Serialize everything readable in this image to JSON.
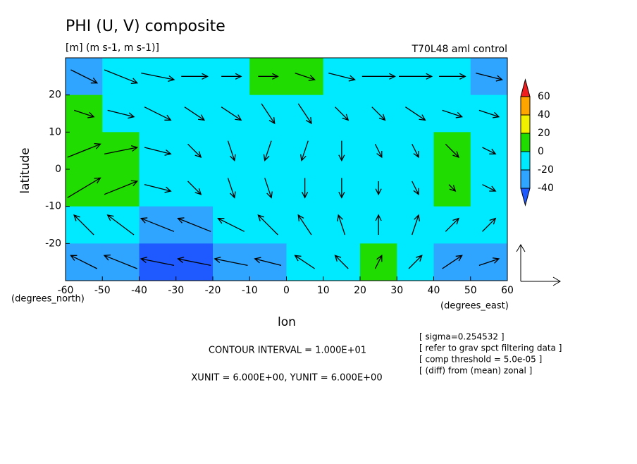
{
  "chart_data": {
    "type": "contour-vector",
    "title": "PHI (U, V) composite",
    "subtitle": "[m] (m s-1, m s-1)]",
    "run_label": "T70L48 aml control",
    "y_label": "latitude",
    "x_label": "lon",
    "y_unit_label": "(degrees_north)",
    "x_unit_label": "(degrees_east)",
    "xlim": [
      -60,
      60
    ],
    "ylim": [
      -30,
      30
    ],
    "xticks": [
      -60,
      -50,
      -40,
      -30,
      -20,
      -10,
      0,
      10,
      20,
      30,
      40,
      50,
      60
    ],
    "yticks": [
      -20,
      -10,
      0,
      10,
      20
    ],
    "lon": [
      -55,
      -45,
      -35,
      -25,
      -15,
      -5,
      5,
      15,
      25,
      35,
      45,
      55
    ],
    "lat": [
      25,
      15,
      5,
      -5,
      -15,
      -25
    ],
    "values": [
      [
        -25,
        -15,
        -15,
        -15,
        -10,
        5,
        5,
        -15,
        -15,
        -15,
        -15,
        -25
      ],
      [
        5,
        -15,
        -15,
        -15,
        -15,
        -15,
        -15,
        -15,
        -15,
        -15,
        -15,
        -15
      ],
      [
        5,
        5,
        -10,
        -15,
        -15,
        -15,
        -15,
        -15,
        -15,
        -15,
        5,
        -10
      ],
      [
        5,
        5,
        -10,
        -15,
        -15,
        -15,
        -15,
        -15,
        -15,
        -15,
        5,
        -10
      ],
      [
        -15,
        -20,
        -25,
        -25,
        -20,
        -15,
        -15,
        -15,
        -15,
        -15,
        -15,
        -15
      ],
      [
        -25,
        -35,
        -45,
        -45,
        -35,
        -25,
        -15,
        -15,
        5,
        -15,
        -25,
        -25
      ]
    ],
    "u": [
      [
        4,
        5,
        5,
        4,
        3,
        3,
        3,
        4,
        5,
        5,
        4,
        4
      ],
      [
        3,
        4,
        4,
        3,
        3,
        2,
        2,
        2,
        2,
        3,
        3,
        3
      ],
      [
        5,
        5,
        4,
        2,
        1,
        -1,
        -1,
        0,
        1,
        1,
        2,
        2
      ],
      [
        5,
        5,
        4,
        2,
        1,
        1,
        0,
        0,
        0,
        1,
        1,
        2
      ],
      [
        -3,
        -4,
        -5,
        -5,
        -4,
        -3,
        -2,
        -1,
        0,
        1,
        2,
        2
      ],
      [
        -4,
        -5,
        -5,
        -5,
        -5,
        -4,
        -3,
        -2,
        1,
        2,
        3,
        3
      ]
    ],
    "v": [
      [
        -2,
        -2,
        -1,
        0,
        0,
        0,
        -1,
        -1,
        0,
        0,
        0,
        -1
      ],
      [
        -1,
        -1,
        -2,
        -2,
        -2,
        -3,
        -3,
        -2,
        -2,
        -2,
        -1,
        -1
      ],
      [
        2,
        1,
        -1,
        -2,
        -3,
        -3,
        -3,
        -3,
        -2,
        -2,
        -2,
        -1
      ],
      [
        3,
        2,
        -1,
        -2,
        -3,
        -3,
        -3,
        -3,
        -2,
        -2,
        -1,
        -1
      ],
      [
        3,
        3,
        2,
        2,
        2,
        3,
        3,
        3,
        3,
        3,
        2,
        2
      ],
      [
        2,
        2,
        1,
        1,
        1,
        1,
        2,
        2,
        2,
        2,
        2,
        1
      ]
    ],
    "levels": [
      -40,
      -20,
      0,
      20,
      40,
      60
    ],
    "colors": [
      "#1e5aff",
      "#2fa5ff",
      "#00eaff",
      "#20dc00",
      "#f0f000",
      "#ffa500",
      "#f01e1e"
    ],
    "reference_vector": 6,
    "contour_interval": "CONTOUR INTERVAL = 1.000E+01",
    "units_note": "XUNIT = 6.000E+00, YUNIT = 6.000E+00",
    "notes": [
      "[ sigma=0.254532 ]",
      "[ refer to grav spct filtering data ]",
      "[ comp threshold = 5.0e-05 ]",
      "[ (diff) from (mean) zonal ]"
    ]
  }
}
